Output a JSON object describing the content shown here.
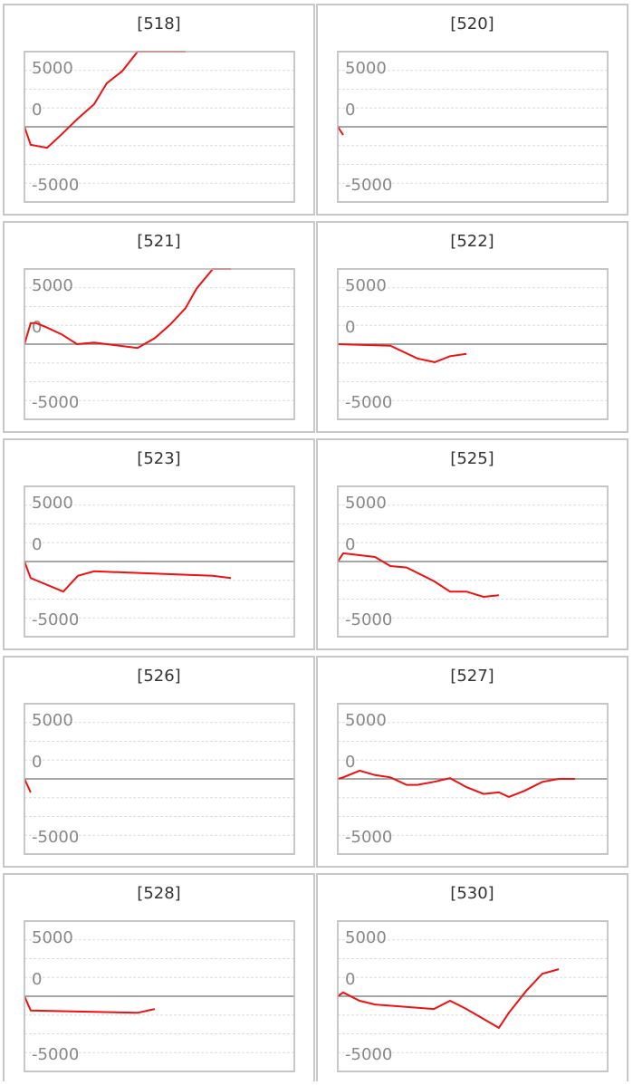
{
  "chart_data": [
    {
      "type": "line",
      "title": "[518]",
      "xlim": [
        0,
        100
      ],
      "ylim": [
        -5000,
        5000
      ],
      "yticks": [
        5000,
        0,
        -5000
      ],
      "grid": true,
      "series": [
        {
          "color": "#ee1111",
          "x": [
            0,
            2.3,
            8.4,
            13.8,
            19.5,
            25.8,
            30.5,
            36.2,
            41.9,
            59.7
          ],
          "values": [
            0,
            -1200,
            -1400,
            -500,
            500,
            1500,
            2900,
            3700,
            5000,
            5000
          ]
        }
      ]
    },
    {
      "type": "line",
      "title": "[520]",
      "xlim": [
        0,
        100
      ],
      "ylim": [
        -5000,
        5000
      ],
      "yticks": [
        5000,
        0,
        -5000
      ],
      "grid": true,
      "series": [
        {
          "color": "#ee1111",
          "x": [
            0,
            2
          ],
          "values": [
            0,
            -540
          ]
        }
      ]
    },
    {
      "type": "line",
      "title": "[521]",
      "xlim": [
        0,
        100
      ],
      "ylim": [
        -5000,
        5000
      ],
      "yticks": [
        5000,
        0,
        -5000
      ],
      "grid": true,
      "series": [
        {
          "color": "#ee1111",
          "x": [
            0,
            2.3,
            4.4,
            8.4,
            13.8,
            19.5,
            25.8,
            41.9,
            48.3,
            54,
            59.7,
            63.8,
            69.8,
            76.5
          ],
          "values": [
            0,
            1400,
            1400,
            1100,
            650,
            0,
            100,
            -250,
            400,
            1300,
            2400,
            3700,
            5000,
            5000
          ]
        }
      ]
    },
    {
      "type": "line",
      "title": "[522]",
      "xlim": [
        0,
        100
      ],
      "ylim": [
        -5000,
        5000
      ],
      "yticks": [
        5000,
        0,
        -5000
      ],
      "grid": true,
      "series": [
        {
          "color": "#ee1111",
          "x": [
            0,
            19.5,
            29.5,
            35.9,
            41.6,
            47.7
          ],
          "values": [
            0,
            -100,
            -950,
            -1200,
            -800,
            -650
          ]
        }
      ]
    },
    {
      "type": "line",
      "title": "[523]",
      "xlim": [
        0,
        100
      ],
      "ylim": [
        -5000,
        5000
      ],
      "yticks": [
        5000,
        0,
        -5000
      ],
      "grid": true,
      "series": [
        {
          "color": "#ee1111",
          "x": [
            0,
            2.3,
            14.4,
            19.8,
            25.8,
            69.8,
            76.5
          ],
          "values": [
            0,
            -1100,
            -2000,
            -950,
            -650,
            -950,
            -1100
          ]
        }
      ]
    },
    {
      "type": "line",
      "title": "[525]",
      "xlim": [
        0,
        100
      ],
      "ylim": [
        -5000,
        5000
      ],
      "yticks": [
        5000,
        0,
        -5000
      ],
      "grid": true,
      "series": [
        {
          "color": "#ee1111",
          "x": [
            0,
            2,
            13.8,
            19.5,
            25.5,
            35.6,
            41.6,
            47.7,
            54,
            59.7
          ],
          "values": [
            0,
            550,
            300,
            -300,
            -400,
            -1300,
            -2000,
            -2000,
            -2350,
            -2250
          ]
        }
      ]
    },
    {
      "type": "line",
      "title": "[526]",
      "xlim": [
        0,
        100
      ],
      "ylim": [
        -5000,
        5000
      ],
      "yticks": [
        5000,
        0,
        -5000
      ],
      "grid": true,
      "series": [
        {
          "color": "#ee1111",
          "x": [
            0,
            2.3
          ],
          "values": [
            0,
            -900
          ]
        }
      ]
    },
    {
      "type": "line",
      "title": "[527]",
      "xlim": [
        0,
        100
      ],
      "ylim": [
        -5000,
        5000
      ],
      "yticks": [
        5000,
        0,
        -5000
      ],
      "grid": true,
      "series": [
        {
          "color": "#ee1111",
          "x": [
            0,
            2,
            8.1,
            13.8,
            19.5,
            25.5,
            29.5,
            35.6,
            41.6,
            47.7,
            54,
            59.7,
            63.4,
            69.1,
            75.8,
            81.9,
            87.9
          ],
          "values": [
            0,
            100,
            550,
            250,
            100,
            -400,
            -400,
            -200,
            50,
            -550,
            -1000,
            -900,
            -1200,
            -800,
            -200,
            0,
            0
          ]
        }
      ]
    },
    {
      "type": "line",
      "title": "[528]",
      "xlim": [
        0,
        100
      ],
      "ylim": [
        -5000,
        5000
      ],
      "yticks": [
        5000,
        0,
        -5000
      ],
      "grid": true,
      "series": [
        {
          "color": "#ee1111",
          "x": [
            0,
            2.3,
            41.9,
            48.3
          ],
          "values": [
            0,
            -950,
            -1100,
            -850
          ]
        }
      ]
    },
    {
      "type": "line",
      "title": "[530]",
      "xlim": [
        0,
        100
      ],
      "ylim": [
        -5000,
        5000
      ],
      "yticks": [
        5000,
        0,
        -5000
      ],
      "grid": true,
      "series": [
        {
          "color": "#ee1111",
          "x": [
            0,
            2,
            8.1,
            13.8,
            35.6,
            41.6,
            47.7,
            59.7,
            63.4,
            69.8,
            75.8,
            81.9
          ],
          "values": [
            0,
            250,
            -300,
            -550,
            -850,
            -300,
            -850,
            -2100,
            -1100,
            350,
            1500,
            1800
          ]
        }
      ]
    }
  ]
}
